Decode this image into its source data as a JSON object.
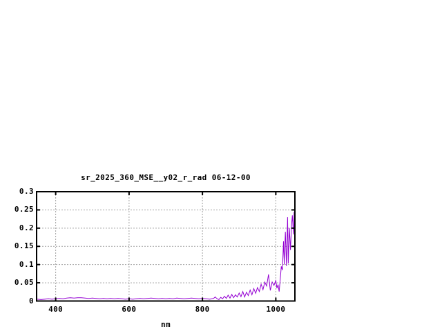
{
  "page": {
    "background": "#ffffff"
  },
  "chart_data": {
    "type": "line",
    "title": "sr_2025_360_MSE__y02_r_rad 06-12-00",
    "xlabel": "nm",
    "ylabel": "",
    "xlim": [
      348,
      1052
    ],
    "ylim": [
      0,
      0.3
    ],
    "xticks": {
      "values": [
        400,
        600,
        800,
        1000
      ],
      "labels": [
        "400",
        "600",
        "800",
        "1000"
      ]
    },
    "yticks": {
      "values": [
        0,
        0.05,
        0.1,
        0.15,
        0.2,
        0.25,
        0.3
      ],
      "labels": [
        "0",
        "0.05",
        "0.1",
        "0.15",
        "0.2",
        "0.25",
        "0.3"
      ]
    },
    "grid": true,
    "grid_style": "dashed",
    "legend": "none",
    "colors": {
      "line": "#9400d3",
      "grid": "#a0a0a0",
      "border": "#000000",
      "text": "#000000",
      "background": "#ffffff"
    },
    "series": [
      {
        "name": "sr_2025_360_MSE__y02_r_rad",
        "x": [
          350,
          360,
          370,
          380,
          390,
          400,
          410,
          420,
          430,
          440,
          450,
          460,
          470,
          480,
          490,
          500,
          510,
          520,
          530,
          540,
          550,
          560,
          570,
          580,
          590,
          600,
          610,
          620,
          630,
          640,
          650,
          660,
          670,
          680,
          690,
          700,
          710,
          720,
          730,
          740,
          750,
          760,
          770,
          780,
          790,
          800,
          810,
          820,
          830,
          835,
          840,
          845,
          850,
          855,
          860,
          865,
          870,
          875,
          880,
          885,
          890,
          895,
          900,
          905,
          910,
          915,
          920,
          925,
          930,
          935,
          940,
          945,
          950,
          955,
          960,
          965,
          970,
          975,
          980,
          985,
          990,
          995,
          1000,
          1003,
          1006,
          1009,
          1012,
          1015,
          1018,
          1021,
          1023,
          1026,
          1029,
          1032,
          1034,
          1037,
          1040,
          1043,
          1045,
          1048,
          1050
        ],
        "y": [
          0.005,
          0.004,
          0.005,
          0.006,
          0.005,
          0.006,
          0.007,
          0.006,
          0.008,
          0.009,
          0.008,
          0.009,
          0.009,
          0.008,
          0.007,
          0.008,
          0.007,
          0.006,
          0.007,
          0.006,
          0.007,
          0.006,
          0.007,
          0.006,
          0.005,
          0.006,
          0.005,
          0.006,
          0.007,
          0.006,
          0.007,
          0.008,
          0.007,
          0.006,
          0.007,
          0.006,
          0.007,
          0.006,
          0.008,
          0.007,
          0.006,
          0.007,
          0.008,
          0.007,
          0.006,
          0.007,
          0.006,
          0.005,
          0.007,
          0.011,
          0.006,
          0.004,
          0.01,
          0.006,
          0.013,
          0.007,
          0.016,
          0.008,
          0.018,
          0.009,
          0.017,
          0.011,
          0.022,
          0.012,
          0.026,
          0.011,
          0.024,
          0.015,
          0.03,
          0.017,
          0.034,
          0.021,
          0.037,
          0.026,
          0.046,
          0.031,
          0.052,
          0.041,
          0.073,
          0.029,
          0.052,
          0.043,
          0.056,
          0.035,
          0.045,
          0.026,
          0.06,
          0.095,
          0.085,
          0.164,
          0.1,
          0.19,
          0.096,
          0.23,
          0.103,
          0.2,
          0.14,
          0.21,
          0.235,
          0.183,
          0.245
        ]
      }
    ]
  }
}
